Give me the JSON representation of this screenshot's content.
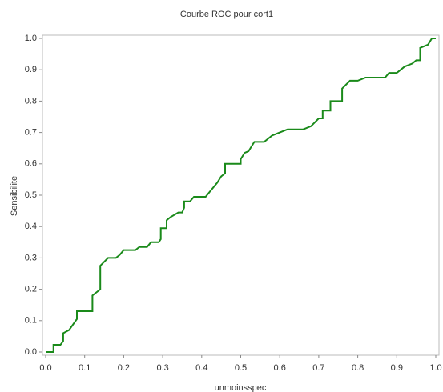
{
  "chart_data": {
    "type": "line",
    "title": "Courbe ROC pour cort1",
    "x_label": "unmoinsspec",
    "y_label": "Sensibilite",
    "x": [
      0,
      0.02,
      0.02,
      0.038,
      0.045,
      0.045,
      0.06,
      0.08,
      0.08,
      0.12,
      0.12,
      0.13,
      0.14,
      0.14,
      0.16,
      0.18,
      0.19,
      0.2,
      0.23,
      0.24,
      0.26,
      0.27,
      0.29,
      0.295,
      0.295,
      0.31,
      0.31,
      0.32,
      0.34,
      0.35,
      0.355,
      0.355,
      0.37,
      0.38,
      0.41,
      0.42,
      0.44,
      0.45,
      0.46,
      0.46,
      0.5,
      0.5,
      0.51,
      0.52,
      0.535,
      0.56,
      0.58,
      0.6,
      0.62,
      0.66,
      0.68,
      0.7,
      0.71,
      0.71,
      0.73,
      0.73,
      0.76,
      0.76,
      0.78,
      0.8,
      0.82,
      0.87,
      0.88,
      0.9,
      0.92,
      0.94,
      0.95,
      0.96,
      0.96,
      0.98,
      0.99,
      1.0
    ],
    "values": [
      0,
      0,
      0.023,
      0.023,
      0.035,
      0.06,
      0.07,
      0.105,
      0.13,
      0.13,
      0.18,
      0.19,
      0.2,
      0.275,
      0.3,
      0.3,
      0.31,
      0.325,
      0.325,
      0.335,
      0.335,
      0.35,
      0.35,
      0.36,
      0.395,
      0.395,
      0.42,
      0.43,
      0.445,
      0.445,
      0.46,
      0.48,
      0.48,
      0.495,
      0.495,
      0.51,
      0.54,
      0.56,
      0.57,
      0.6,
      0.6,
      0.615,
      0.635,
      0.64,
      0.67,
      0.67,
      0.69,
      0.7,
      0.71,
      0.71,
      0.72,
      0.745,
      0.745,
      0.77,
      0.77,
      0.8,
      0.8,
      0.84,
      0.865,
      0.865,
      0.875,
      0.875,
      0.89,
      0.89,
      0.91,
      0.92,
      0.93,
      0.93,
      0.97,
      0.98,
      1.0,
      1.0
    ],
    "color": "#1a8a1a",
    "grid": false,
    "xlim": [
      0,
      1
    ],
    "ylim": [
      0,
      1
    ],
    "xticks": [
      {
        "value": 0,
        "label": "0.0"
      },
      {
        "value": 0.1,
        "label": "0.1"
      },
      {
        "value": 0.2,
        "label": "0.2"
      },
      {
        "value": 0.3,
        "label": "0.3"
      },
      {
        "value": 0.4,
        "label": "0.4"
      },
      {
        "value": 0.5,
        "label": "0.5"
      },
      {
        "value": 0.6,
        "label": "0.6"
      },
      {
        "value": 0.7,
        "label": "0.7"
      },
      {
        "value": 0.8,
        "label": "0.8"
      },
      {
        "value": 0.9,
        "label": "0.9"
      },
      {
        "value": 1,
        "label": "1.0"
      }
    ],
    "yticks": [
      {
        "value": 0,
        "label": "0.0"
      },
      {
        "value": 0.1,
        "label": "0.1"
      },
      {
        "value": 0.2,
        "label": "0.2"
      },
      {
        "value": 0.3,
        "label": "0.3"
      },
      {
        "value": 0.4,
        "label": "0.4"
      },
      {
        "value": 0.5,
        "label": "0.5"
      },
      {
        "value": 0.6,
        "label": "0.6"
      },
      {
        "value": 0.7,
        "label": "0.7"
      },
      {
        "value": 0.8,
        "label": "0.8"
      },
      {
        "value": 0.9,
        "label": "0.9"
      },
      {
        "value": 1,
        "label": "1.0"
      }
    ]
  }
}
